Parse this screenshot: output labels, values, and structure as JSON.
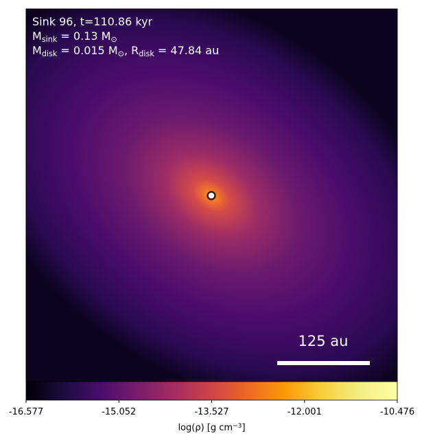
{
  "chart_data": {
    "type": "image",
    "annotations": [
      [
        {
          "t": "Sink 96, t=110.86 kyr"
        }
      ],
      [
        {
          "t": "M"
        },
        {
          "sub": "sink"
        },
        {
          "t": " = 0.13 M"
        },
        {
          "sub": "⊙"
        }
      ],
      [
        {
          "t": "M"
        },
        {
          "sub": "disk"
        },
        {
          "t": " = 0.015 M"
        },
        {
          "sub": "⊙"
        },
        {
          "t": ", R"
        },
        {
          "sub": "disk"
        },
        {
          "t": " = 47.84 au"
        }
      ]
    ],
    "scale_bar_label": "125 au",
    "colormap": "inferno",
    "colorbar": {
      "lim": [
        -16.577,
        -10.476
      ],
      "ticks": [
        -16.577,
        -15.052,
        -13.527,
        -12.001,
        -10.476
      ],
      "label": [
        {
          "t": "log(ρ) [g cm"
        },
        {
          "sup": "−3"
        },
        {
          "t": "]"
        }
      ]
    }
  }
}
